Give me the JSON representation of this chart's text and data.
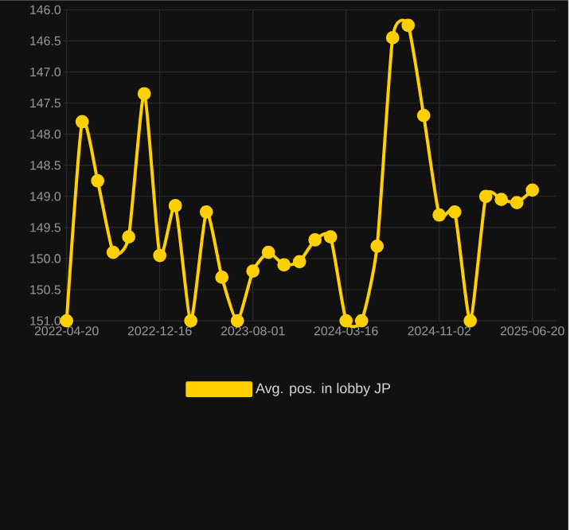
{
  "chart_data": {
    "type": "line",
    "categories": [
      "2022-04-20",
      null,
      null,
      null,
      null,
      null,
      "2022-12-16",
      null,
      null,
      null,
      null,
      null,
      "2023-08-01",
      null,
      null,
      null,
      null,
      null,
      "2024-03-16",
      null,
      null,
      null,
      null,
      null,
      "2024-11-02",
      null,
      null,
      null,
      null,
      null,
      "2025-06-20"
    ],
    "series": [
      {
        "name": "Avg. pos. in lobby JP",
        "color": "#ffd000",
        "values": [
          151.0,
          147.8,
          148.75,
          149.9,
          149.65,
          147.35,
          149.95,
          149.15,
          151.0,
          149.25,
          150.3,
          151.0,
          150.2,
          149.9,
          150.1,
          150.05,
          149.7,
          149.65,
          151.0,
          151.0,
          149.8,
          146.45,
          146.25,
          147.7,
          149.3,
          149.25,
          151.0,
          149.0,
          149.05,
          149.1,
          148.9
        ]
      }
    ],
    "ylim": [
      151.0,
      146.0
    ],
    "yticks": [
      {
        "value": 146.0,
        "label": "146.0"
      },
      {
        "value": 146.5,
        "label": "146.5"
      },
      {
        "value": 147.0,
        "label": "147.0"
      },
      {
        "value": 147.5,
        "label": "147.5"
      },
      {
        "value": 148.0,
        "label": "148.0"
      },
      {
        "value": 148.5,
        "label": "148.5"
      },
      {
        "value": 149.0,
        "label": "149.0"
      },
      {
        "value": 149.5,
        "label": "149.5"
      },
      {
        "value": 150.0,
        "label": "150.0"
      },
      {
        "value": 150.5,
        "label": "150.5"
      },
      {
        "value": 151.0,
        "label": "151.0"
      }
    ],
    "grid": true,
    "legend": "bottom",
    "marker": "circle",
    "line_style": "solid"
  }
}
